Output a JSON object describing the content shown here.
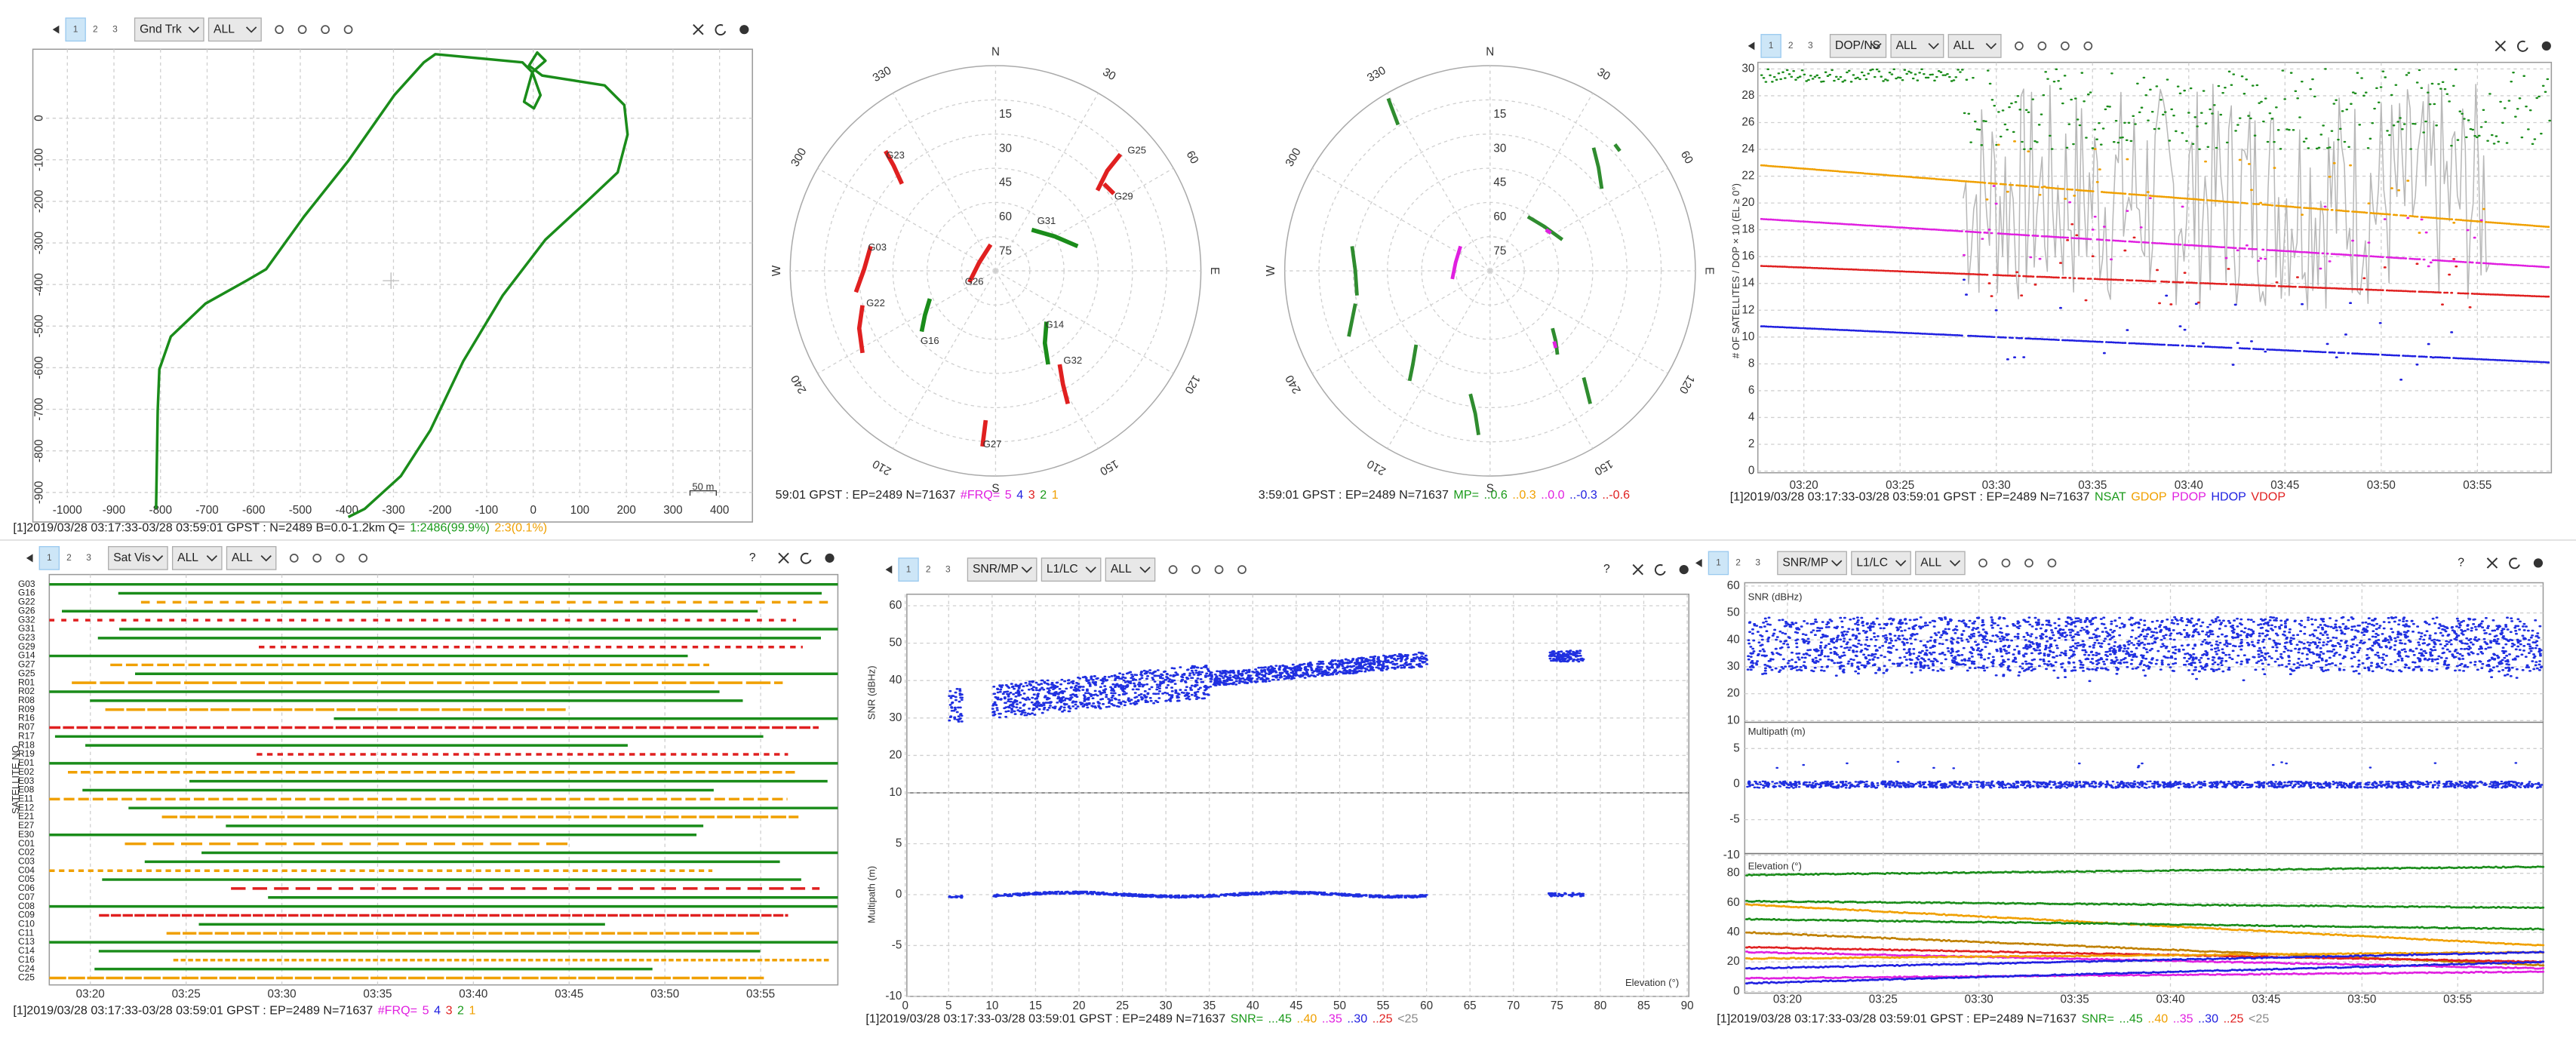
{
  "ground_track": {
    "toolbar": {
      "tabs": [
        "1",
        "2",
        "3"
      ],
      "dropdowns": [
        "Gnd Trk",
        "ALL"
      ]
    },
    "y_ticks": [
      "0",
      "-100",
      "-200",
      "-300",
      "-400",
      "-500",
      "-600",
      "-700",
      "-800",
      "-900"
    ],
    "x_ticks": [
      "-1000",
      "-900",
      "-800",
      "-700",
      "-600",
      "-500",
      "-400",
      "-300",
      "-200",
      "-100",
      "0",
      "100",
      "200",
      "300",
      "400"
    ],
    "scale_label": "50 m",
    "status": {
      "text": "[1]2019/03/28 03:17:33-03/28 03:59:01 GPST : N=2489 B=0.0-1.2km Q=",
      "parts": [
        {
          "text": "1:2486(99.9%)",
          "color": "#1a9a1a"
        },
        {
          "text": "2:3(0.1%)",
          "color": "#f0a000"
        }
      ]
    }
  },
  "sky_plot_1": {
    "compass": [
      "N",
      "E",
      "S",
      "W"
    ],
    "elevation_ticks": [
      "15",
      "30",
      "45",
      "60",
      "75"
    ],
    "azimuth_ticks": [
      "30",
      "60",
      "120",
      "150",
      "210",
      "240",
      "300",
      "330"
    ],
    "satellites": [
      "G25",
      "G23",
      "G29",
      "G31",
      "G03",
      "G26",
      "G22",
      "G16",
      "G14",
      "G32",
      "G27"
    ],
    "status": {
      "text": "59:01 GPST : EP=2489 N=71637",
      "parts": [
        {
          "text": "#FRQ=",
          "color": "#e020e0"
        },
        {
          "text": "5",
          "color": "#e020e0"
        },
        {
          "text": "4",
          "color": "#2020e0"
        },
        {
          "text": "3",
          "color": "#e02020"
        },
        {
          "text": "2",
          "color": "#1a9a1a"
        },
        {
          "text": "1",
          "color": "#f0a000"
        }
      ]
    }
  },
  "sky_plot_2": {
    "compass": [
      "N",
      "E",
      "S",
      "W"
    ],
    "elevation_ticks": [
      "15",
      "30",
      "45",
      "60",
      "75"
    ],
    "azimuth_ticks": [
      "30",
      "60",
      "120",
      "150",
      "210",
      "240",
      "300",
      "330"
    ],
    "status": {
      "text": "3:59:01 GPST : EP=2489 N=71637",
      "parts": [
        {
          "text": "MP=",
          "color": "#1a9a1a"
        },
        {
          "text": "..0.6",
          "color": "#1a9a1a"
        },
        {
          "text": "..0.3",
          "color": "#f0a000"
        },
        {
          "text": "..0.0",
          "color": "#e020e0"
        },
        {
          "text": "..-0.3",
          "color": "#2020e0"
        },
        {
          "text": "..-0.6",
          "color": "#e02020"
        }
      ]
    }
  },
  "dop_plot": {
    "toolbar": {
      "tabs": [
        "1",
        "2",
        "3"
      ],
      "dropdowns": [
        "DOP/NS",
        "ALL",
        "ALL"
      ]
    },
    "y_label": "# OF SATELLITES / DOP × 10 (EL ≥ 0°)",
    "y_ticks": [
      "30",
      "28",
      "26",
      "24",
      "22",
      "20",
      "18",
      "16",
      "14",
      "12",
      "10",
      "8",
      "6",
      "4",
      "2",
      "0"
    ],
    "x_ticks": [
      "03:20",
      "03:25",
      "03:30",
      "03:35",
      "03:40",
      "03:45",
      "03:50",
      "03:55"
    ],
    "status": {
      "text": "[1]2019/03/28 03:17:33-03/28 03:59:01 GPST : EP=2489 N=71637",
      "parts": [
        {
          "text": "NSAT",
          "color": "#1a9a1a"
        },
        {
          "text": "GDOP",
          "color": "#f0a000"
        },
        {
          "text": "PDOP",
          "color": "#e020e0"
        },
        {
          "text": "HDOP",
          "color": "#2020e0"
        },
        {
          "text": "VDOP",
          "color": "#e02020"
        }
      ]
    }
  },
  "sat_vis": {
    "toolbar": {
      "tabs": [
        "1",
        "2",
        "3"
      ],
      "dropdowns": [
        "Sat Vis",
        "ALL",
        "ALL"
      ],
      "help": "?"
    },
    "y_label": "SATELLITE NO",
    "satellites": [
      "G03",
      "G16",
      "G22",
      "G26",
      "G32",
      "G31",
      "G23",
      "G29",
      "G14",
      "G27",
      "G25",
      "R01",
      "R02",
      "R08",
      "R09",
      "R16",
      "R07",
      "R17",
      "R18",
      "R19",
      "E01",
      "E02",
      "E03",
      "E08",
      "E11",
      "E12",
      "E21",
      "E27",
      "E30",
      "C01",
      "C02",
      "C03",
      "C04",
      "C05",
      "C06",
      "C07",
      "C08",
      "C09",
      "C10",
      "C11",
      "C13",
      "C14",
      "C16",
      "C24",
      "C25"
    ],
    "x_ticks": [
      "03:20",
      "03:25",
      "03:30",
      "03:35",
      "03:40",
      "03:45",
      "03:50",
      "03:55"
    ],
    "status": {
      "text": "[1]2019/03/28 03:17:33-03/28 03:59:01 GPST : EP=2489 N=71637",
      "parts": [
        {
          "text": "#FRQ=",
          "color": "#e020e0"
        },
        {
          "text": "5",
          "color": "#e020e0"
        },
        {
          "text": "4",
          "color": "#2020e0"
        },
        {
          "text": "3",
          "color": "#e02020"
        },
        {
          "text": "2",
          "color": "#1a9a1a"
        },
        {
          "text": "1",
          "color": "#f0a000"
        }
      ]
    }
  },
  "snr_elevation": {
    "toolbar": {
      "tabs": [
        "1",
        "2",
        "3"
      ],
      "dropdowns": [
        "SNR/MP",
        "L1/LC",
        "ALL"
      ],
      "help": "?"
    },
    "snr_label": "SNR (dBHz)",
    "mp_label": "Multipath (m)",
    "x_label": "Elevation (°)",
    "snr_ticks": [
      "60",
      "50",
      "40",
      "30",
      "20",
      "10"
    ],
    "mp_ticks": [
      "5",
      "0",
      "-5",
      "-10"
    ],
    "x_ticks": [
      "0",
      "5",
      "10",
      "15",
      "20",
      "25",
      "30",
      "35",
      "40",
      "45",
      "50",
      "55",
      "60",
      "65",
      "70",
      "75",
      "80",
      "85",
      "90"
    ],
    "status": {
      "text": "[1]2019/03/28 03:17:33-03/28 03:59:01 GPST : EP=2489 N=71637",
      "parts": [
        {
          "text": "SNR=",
          "color": "#1a9a1a"
        },
        {
          "text": "...45",
          "color": "#1a9a1a"
        },
        {
          "text": "..40",
          "color": "#f0a000"
        },
        {
          "text": "..35",
          "color": "#e020e0"
        },
        {
          "text": "..30",
          "color": "#2020e0"
        },
        {
          "text": "..25",
          "color": "#e02020"
        },
        {
          "text": "<25",
          "color": "#888888"
        }
      ]
    }
  },
  "snr_time": {
    "toolbar": {
      "tabs": [
        "1",
        "2",
        "3"
      ],
      "dropdowns": [
        "SNR/MP",
        "L1/LC",
        "ALL"
      ],
      "help": "?"
    },
    "snr_label": "SNR (dBHz)",
    "mp_label": "Multipath (m)",
    "el_label": "Elevation (°)",
    "snr_ticks": [
      "60",
      "50",
      "40",
      "30",
      "20",
      "10"
    ],
    "mp_ticks": [
      "5",
      "0",
      "-5",
      "-10"
    ],
    "el_ticks": [
      "80",
      "60",
      "40",
      "20",
      "0"
    ],
    "x_ticks": [
      "03:20",
      "03:25",
      "03:30",
      "03:35",
      "03:40",
      "03:45",
      "03:50",
      "03:55"
    ],
    "status": {
      "text": "[1]2019/03/28 03:17:33-03/28 03:59:01 GPST : EP=2489 N=71637",
      "parts": [
        {
          "text": "SNR=",
          "color": "#1a9a1a"
        },
        {
          "text": "...45",
          "color": "#1a9a1a"
        },
        {
          "text": "..40",
          "color": "#f0a000"
        },
        {
          "text": "..35",
          "color": "#e020e0"
        },
        {
          "text": "..30",
          "color": "#2020e0"
        },
        {
          "text": "..25",
          "color": "#e02020"
        },
        {
          "text": "<25",
          "color": "#888888"
        }
      ]
    }
  }
}
